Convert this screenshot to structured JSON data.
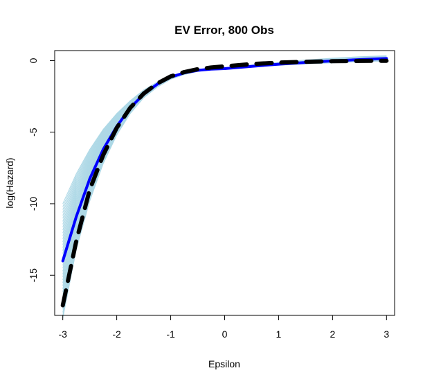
{
  "chart_data": {
    "type": "line",
    "title": "EV Error, 800 Obs",
    "xlabel": "Epsilon",
    "ylabel": "log(Hazard)",
    "xlim": [
      -3.15,
      3.15
    ],
    "ylim": [
      -17.8,
      0.7
    ],
    "xticks": [
      -3,
      -2,
      -1,
      0,
      1,
      2,
      3
    ],
    "yticks": [
      0,
      -5,
      -10,
      -15
    ],
    "grid": false,
    "legend": "none",
    "colors": {
      "bootstrap": "#add8e6",
      "estimate": "#0000ff",
      "truth": "#000000"
    },
    "bootstrap_band": {
      "x": [
        -3,
        -2.75,
        -2.5,
        -2.25,
        -2,
        -1.75,
        -1.5,
        -1.25,
        -1,
        -0.75,
        -0.5,
        -0.25,
        0,
        0.5,
        1,
        1.5,
        2,
        2.5,
        3
      ],
      "lower": [
        -18.0,
        -13.2,
        -9.8,
        -7.2,
        -5.2,
        -3.7,
        -2.6,
        -1.85,
        -1.3,
        -0.98,
        -0.76,
        -0.64,
        -0.58,
        -0.44,
        -0.34,
        -0.25,
        -0.18,
        -0.1,
        -0.05
      ],
      "upper": [
        -10.0,
        -7.9,
        -6.2,
        -4.8,
        -3.7,
        -2.8,
        -2.05,
        -1.5,
        -1.05,
        -0.8,
        -0.66,
        -0.58,
        -0.52,
        -0.3,
        -0.12,
        0.05,
        0.18,
        0.28,
        0.35
      ],
      "count": 40
    },
    "series": [
      {
        "role": "estimate",
        "x": [
          -3,
          -2.75,
          -2.5,
          -2.25,
          -2,
          -1.75,
          -1.5,
          -1.25,
          -1,
          -0.75,
          -0.5,
          -0.25,
          0,
          0.5,
          1,
          1.5,
          2,
          2.5,
          3
        ],
        "values": [
          -14.0,
          -10.9,
          -8.25,
          -6.2,
          -4.6,
          -3.3,
          -2.35,
          -1.65,
          -1.15,
          -0.86,
          -0.68,
          -0.6,
          -0.56,
          -0.4,
          -0.25,
          -0.13,
          -0.02,
          0.07,
          0.15
        ]
      },
      {
        "role": "truth",
        "x": [
          -3,
          -2.75,
          -2.5,
          -2.25,
          -2,
          -1.75,
          -1.5,
          -1.25,
          -1,
          -0.75,
          -0.5,
          -0.25,
          0,
          0.5,
          1,
          1.5,
          2,
          2.5,
          3
        ],
        "values": [
          -17.1,
          -12.6,
          -9.0,
          -6.6,
          -4.7,
          -3.3,
          -2.3,
          -1.6,
          -1.1,
          -0.8,
          -0.6,
          -0.48,
          -0.4,
          -0.24,
          -0.14,
          -0.08,
          -0.04,
          -0.02,
          -0.01
        ]
      }
    ]
  }
}
